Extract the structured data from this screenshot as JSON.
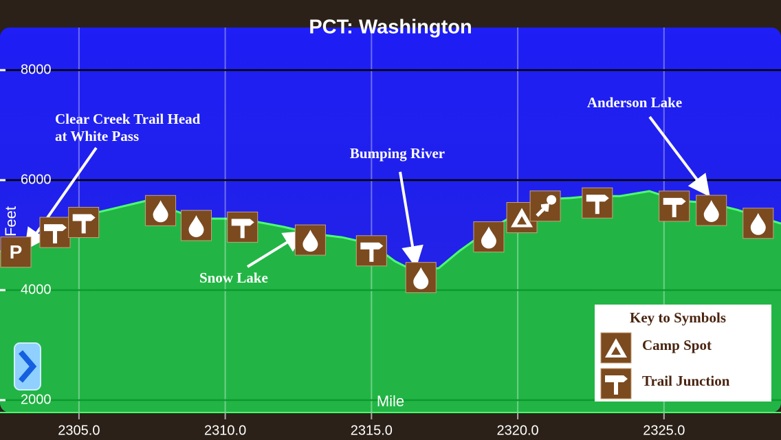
{
  "chart_data": {
    "type": "area",
    "title": "PCT: Washington",
    "x_label": "Mile",
    "y_label": "Feet",
    "x": [
      2302.3,
      2303.5,
      2304.5,
      2306,
      2307.5,
      2308.2,
      2309,
      2310,
      2311,
      2312,
      2313,
      2314,
      2315,
      2315.8,
      2316.5,
      2317.3,
      2318,
      2319,
      2320,
      2320.8,
      2321.8,
      2322.5,
      2323.5,
      2324.5,
      2325.5,
      2326.5,
      2327.5,
      2329
    ],
    "values": [
      4700,
      4960,
      5275,
      5460,
      5650,
      5460,
      5300,
      5300,
      5250,
      5150,
      5025,
      4960,
      4840,
      4525,
      4340,
      4400,
      4710,
      5090,
      5400,
      5650,
      5675,
      5710,
      5710,
      5800,
      5625,
      5590,
      5460,
      5210
    ],
    "color": "#22b545",
    "xlim": [
      2302.3,
      2329.0
    ],
    "ylim": [
      1775,
      8775
    ],
    "xticks": [
      {
        "value": 2305,
        "label": "2305.0"
      },
      {
        "value": 2310,
        "label": "2310.0"
      },
      {
        "value": 2315,
        "label": "2315.0"
      },
      {
        "value": 2320,
        "label": "2320.0"
      },
      {
        "value": 2325,
        "label": "2325.0"
      }
    ],
    "yticks": [
      2000,
      4000,
      6000,
      8000
    ],
    "grid": true,
    "waypoints": [
      {
        "x": 2302.84,
        "symbol": "parking",
        "label": "P"
      },
      {
        "x": 2304.18,
        "symbol": "junction"
      },
      {
        "x": 2305.16,
        "symbol": "junction"
      },
      {
        "x": 2307.79,
        "symbol": "water"
      },
      {
        "x": 2309.01,
        "symbol": "water"
      },
      {
        "x": 2310.59,
        "symbol": "junction"
      },
      {
        "x": 2312.91,
        "symbol": "water"
      },
      {
        "x": 2315.0,
        "symbol": "junction"
      },
      {
        "x": 2316.69,
        "symbol": "water"
      },
      {
        "x": 2319.01,
        "symbol": "water"
      },
      {
        "x": 2320.14,
        "symbol": "camp"
      },
      {
        "x": 2320.94,
        "symbol": "viewpoint"
      },
      {
        "x": 2322.72,
        "symbol": "junction"
      },
      {
        "x": 2325.35,
        "symbol": "junction"
      },
      {
        "x": 2326.62,
        "symbol": "water"
      },
      {
        "x": 2328.22,
        "symbol": "water"
      }
    ],
    "annotations": [
      [
        "Clear Creek Trail Head",
        "at White Pass"
      ],
      [
        "Snow Lake"
      ],
      [
        "Bumping River"
      ],
      [
        "Anderson Lake"
      ]
    ],
    "legend": {
      "title": "Key to Symbols",
      "items": [
        {
          "symbol": "camp",
          "label": "Camp Spot"
        },
        {
          "symbol": "junction",
          "label": "Trail Junction"
        }
      ]
    }
  }
}
